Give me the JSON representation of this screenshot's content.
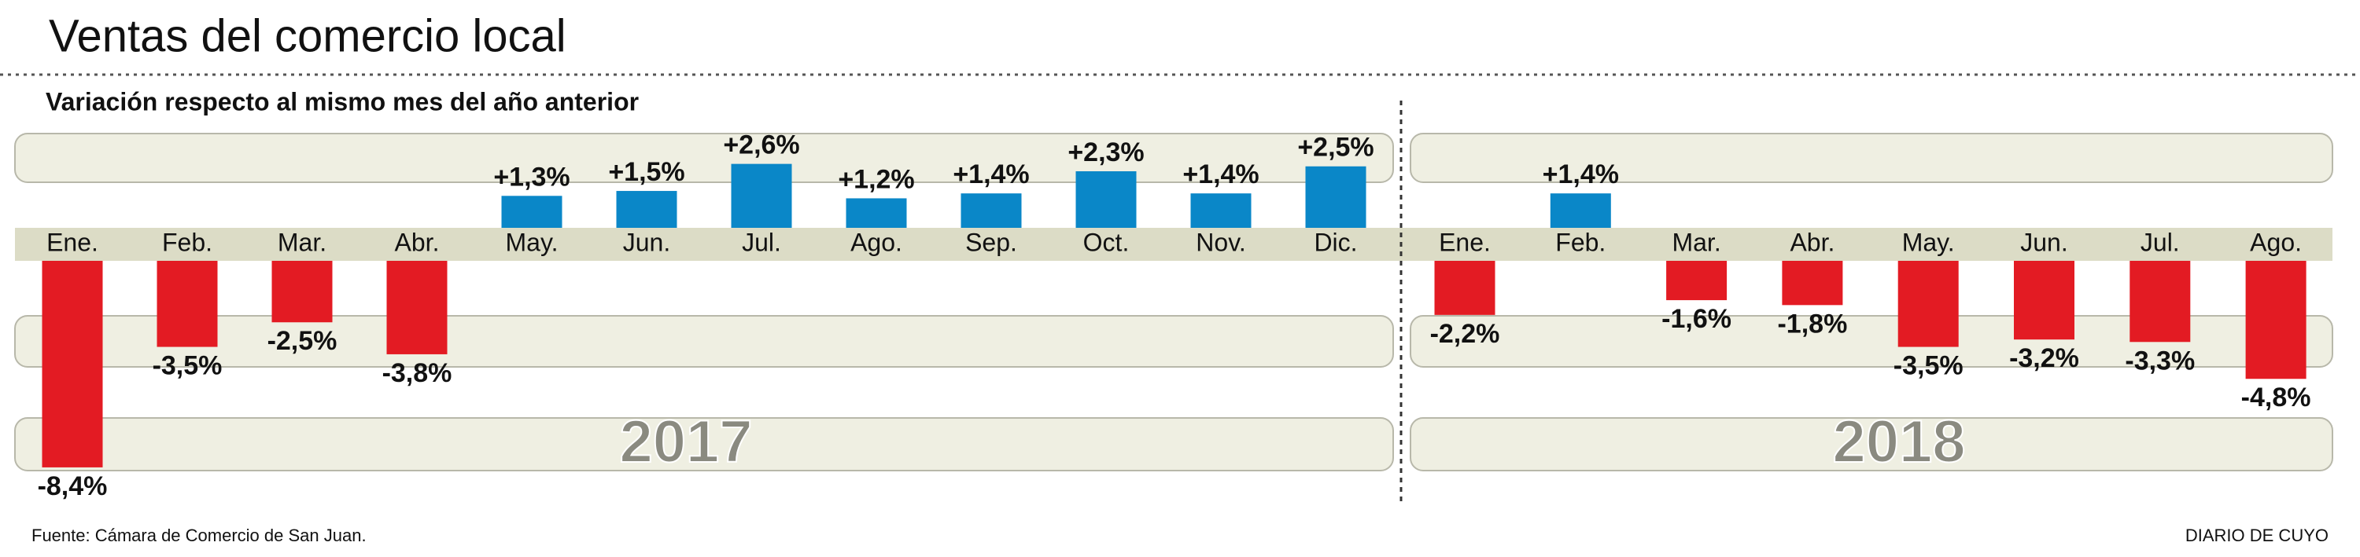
{
  "title": "Ventas del comercio local",
  "subtitle": "Variación respecto al mismo mes del año anterior",
  "source": "Fuente: Cámara de Comercio de San Juan.",
  "brand": "DIARIO DE CUYO",
  "chart_data": [
    {
      "type": "bar",
      "title": "2017",
      "categories": [
        "Ene.",
        "Feb.",
        "Mar.",
        "Abr.",
        "May.",
        "Jun.",
        "Jul.",
        "Ago.",
        "Sep.",
        "Oct.",
        "Nov.",
        "Dic."
      ],
      "values": [
        -8.4,
        -3.5,
        -2.5,
        -3.8,
        1.3,
        1.5,
        2.6,
        1.2,
        1.4,
        2.3,
        1.4,
        2.5
      ],
      "value_labels": [
        "-8,4%",
        "-3,5%",
        "-2,5%",
        "-3,8%",
        "+1,3%",
        "+1,5%",
        "+2,6%",
        "+1,2%",
        "+1,4%",
        "+2,3%",
        "+1,4%",
        "+2,5%"
      ],
      "color": "#0a87c8",
      "negative_color": "#e31b23"
    },
    {
      "type": "bar",
      "title": "2018",
      "categories": [
        "Ene.",
        "Feb.",
        "Mar.",
        "Abr.",
        "May.",
        "Jun.",
        "Jul.",
        "Ago."
      ],
      "values": [
        -2.2,
        1.4,
        -1.6,
        -1.8,
        -3.5,
        -3.2,
        -3.3,
        -4.8
      ],
      "value_labels": [
        "-2,2%",
        "+1,4%",
        "-1,6%",
        "-1,8%",
        "-3,5%",
        "-3,2%",
        "-3,3%",
        "-4,8%"
      ],
      "color": "#0a87c8",
      "negative_color": "#e31b23"
    }
  ]
}
